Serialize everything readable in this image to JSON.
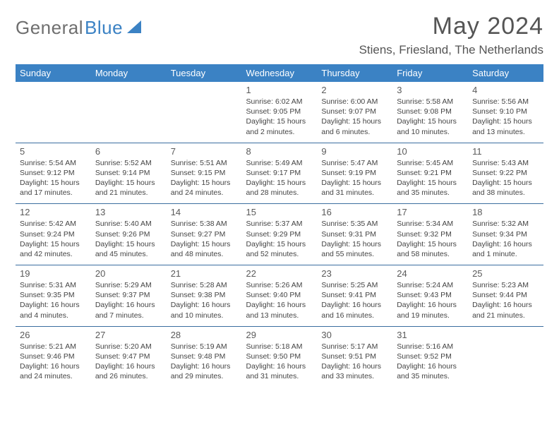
{
  "logo": {
    "general": "General",
    "blue": "Blue"
  },
  "header": {
    "title": "May 2024",
    "location": "Stiens, Friesland, The Netherlands"
  },
  "colors": {
    "header_bg": "#3b82c4",
    "header_text": "#ffffff",
    "logo_gray": "#6f6f6f",
    "logo_blue": "#3b82c4",
    "cell_border": "#3b6ea0",
    "text": "#444444",
    "daynum": "#5a5a5a"
  },
  "days_of_week": [
    "Sunday",
    "Monday",
    "Tuesday",
    "Wednesday",
    "Thursday",
    "Friday",
    "Saturday"
  ],
  "weeks": [
    [
      null,
      null,
      null,
      {
        "n": "1",
        "sr": "6:02 AM",
        "ss": "9:05 PM",
        "dl": "15 hours and 2 minutes."
      },
      {
        "n": "2",
        "sr": "6:00 AM",
        "ss": "9:07 PM",
        "dl": "15 hours and 6 minutes."
      },
      {
        "n": "3",
        "sr": "5:58 AM",
        "ss": "9:08 PM",
        "dl": "15 hours and 10 minutes."
      },
      {
        "n": "4",
        "sr": "5:56 AM",
        "ss": "9:10 PM",
        "dl": "15 hours and 13 minutes."
      }
    ],
    [
      {
        "n": "5",
        "sr": "5:54 AM",
        "ss": "9:12 PM",
        "dl": "15 hours and 17 minutes."
      },
      {
        "n": "6",
        "sr": "5:52 AM",
        "ss": "9:14 PM",
        "dl": "15 hours and 21 minutes."
      },
      {
        "n": "7",
        "sr": "5:51 AM",
        "ss": "9:15 PM",
        "dl": "15 hours and 24 minutes."
      },
      {
        "n": "8",
        "sr": "5:49 AM",
        "ss": "9:17 PM",
        "dl": "15 hours and 28 minutes."
      },
      {
        "n": "9",
        "sr": "5:47 AM",
        "ss": "9:19 PM",
        "dl": "15 hours and 31 minutes."
      },
      {
        "n": "10",
        "sr": "5:45 AM",
        "ss": "9:21 PM",
        "dl": "15 hours and 35 minutes."
      },
      {
        "n": "11",
        "sr": "5:43 AM",
        "ss": "9:22 PM",
        "dl": "15 hours and 38 minutes."
      }
    ],
    [
      {
        "n": "12",
        "sr": "5:42 AM",
        "ss": "9:24 PM",
        "dl": "15 hours and 42 minutes."
      },
      {
        "n": "13",
        "sr": "5:40 AM",
        "ss": "9:26 PM",
        "dl": "15 hours and 45 minutes."
      },
      {
        "n": "14",
        "sr": "5:38 AM",
        "ss": "9:27 PM",
        "dl": "15 hours and 48 minutes."
      },
      {
        "n": "15",
        "sr": "5:37 AM",
        "ss": "9:29 PM",
        "dl": "15 hours and 52 minutes."
      },
      {
        "n": "16",
        "sr": "5:35 AM",
        "ss": "9:31 PM",
        "dl": "15 hours and 55 minutes."
      },
      {
        "n": "17",
        "sr": "5:34 AM",
        "ss": "9:32 PM",
        "dl": "15 hours and 58 minutes."
      },
      {
        "n": "18",
        "sr": "5:32 AM",
        "ss": "9:34 PM",
        "dl": "16 hours and 1 minute."
      }
    ],
    [
      {
        "n": "19",
        "sr": "5:31 AM",
        "ss": "9:35 PM",
        "dl": "16 hours and 4 minutes."
      },
      {
        "n": "20",
        "sr": "5:29 AM",
        "ss": "9:37 PM",
        "dl": "16 hours and 7 minutes."
      },
      {
        "n": "21",
        "sr": "5:28 AM",
        "ss": "9:38 PM",
        "dl": "16 hours and 10 minutes."
      },
      {
        "n": "22",
        "sr": "5:26 AM",
        "ss": "9:40 PM",
        "dl": "16 hours and 13 minutes."
      },
      {
        "n": "23",
        "sr": "5:25 AM",
        "ss": "9:41 PM",
        "dl": "16 hours and 16 minutes."
      },
      {
        "n": "24",
        "sr": "5:24 AM",
        "ss": "9:43 PM",
        "dl": "16 hours and 19 minutes."
      },
      {
        "n": "25",
        "sr": "5:23 AM",
        "ss": "9:44 PM",
        "dl": "16 hours and 21 minutes."
      }
    ],
    [
      {
        "n": "26",
        "sr": "5:21 AM",
        "ss": "9:46 PM",
        "dl": "16 hours and 24 minutes."
      },
      {
        "n": "27",
        "sr": "5:20 AM",
        "ss": "9:47 PM",
        "dl": "16 hours and 26 minutes."
      },
      {
        "n": "28",
        "sr": "5:19 AM",
        "ss": "9:48 PM",
        "dl": "16 hours and 29 minutes."
      },
      {
        "n": "29",
        "sr": "5:18 AM",
        "ss": "9:50 PM",
        "dl": "16 hours and 31 minutes."
      },
      {
        "n": "30",
        "sr": "5:17 AM",
        "ss": "9:51 PM",
        "dl": "16 hours and 33 minutes."
      },
      {
        "n": "31",
        "sr": "5:16 AM",
        "ss": "9:52 PM",
        "dl": "16 hours and 35 minutes."
      },
      null
    ]
  ],
  "labels": {
    "sunrise": "Sunrise: ",
    "sunset": "Sunset: ",
    "daylight": "Daylight: "
  }
}
